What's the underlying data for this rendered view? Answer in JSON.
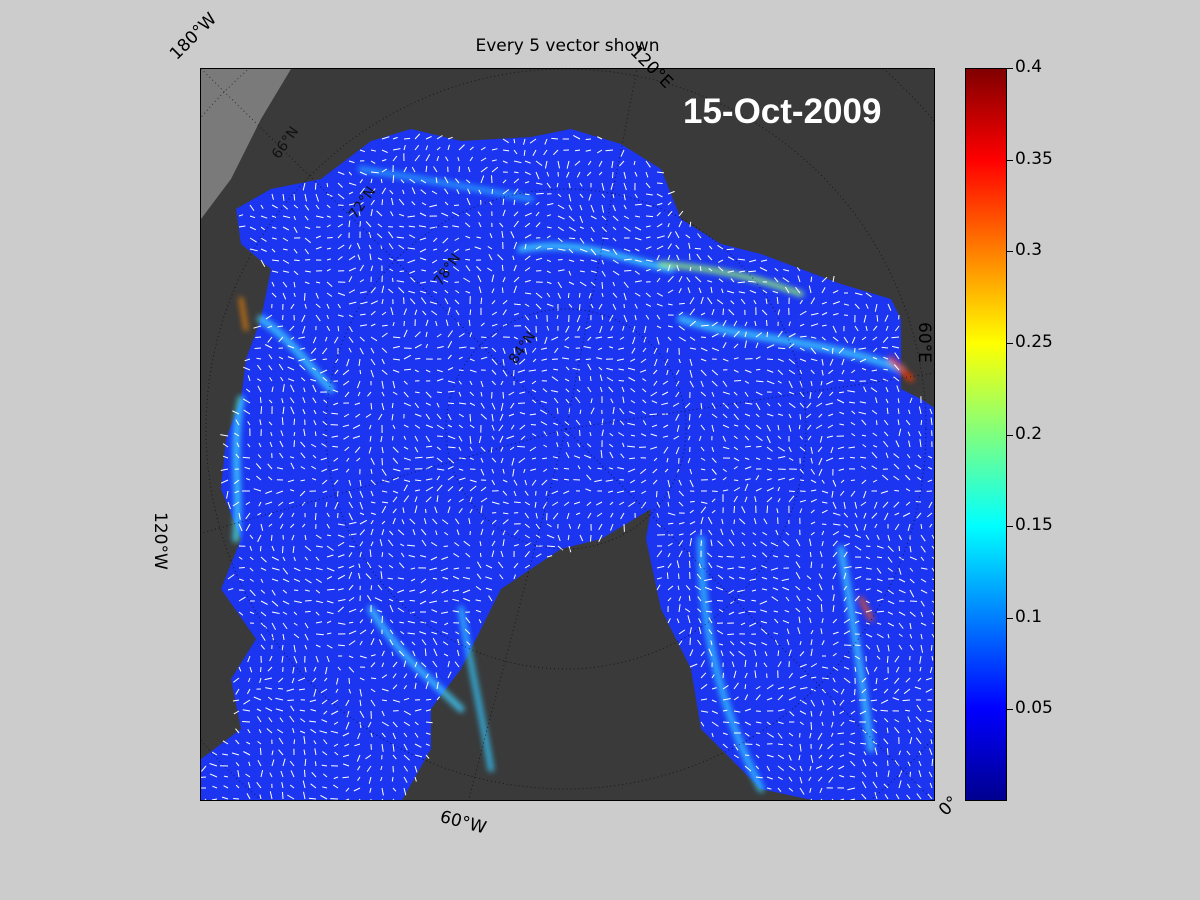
{
  "title": "Every 5 vector shown",
  "date": "15-Oct-2009",
  "longitude_labels": {
    "w180": "180°W",
    "e120": "120°E",
    "e60": "60°E",
    "w120": "120°W",
    "w60": "60°W",
    "zero": "0°"
  },
  "latitude_labels": [
    "66°N",
    "72°N",
    "78°N",
    "84°N"
  ],
  "colorbar": {
    "ticks": [
      "0.4",
      "0.35",
      "0.3",
      "0.25",
      "0.2",
      "0.15",
      "0.1",
      "0.05"
    ],
    "min": 0,
    "max": 0.4,
    "colormap": [
      "#00008f",
      "#0000ff",
      "#00ffff",
      "#ffff00",
      "#ff0000",
      "#800000"
    ]
  },
  "colors": {
    "land": "#3a3a3a",
    "ocean_low": "#1a3cf0",
    "figure_bg": "#cccccc",
    "vectors": "#ffffff"
  }
}
